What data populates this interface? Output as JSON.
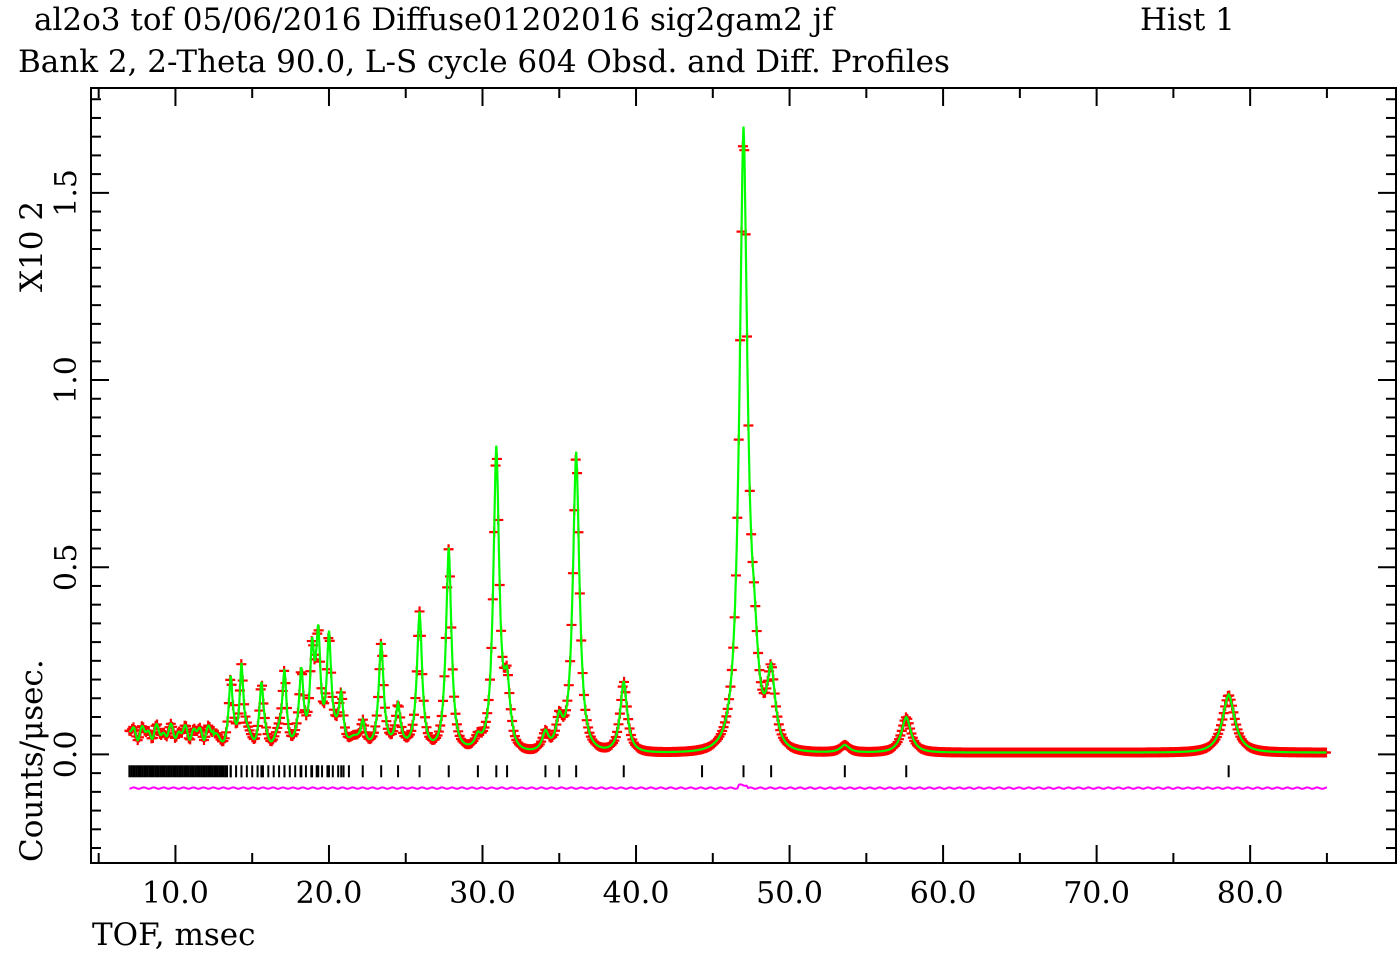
{
  "header": {
    "line1_left": "al2o3 tof 05/06/2016 Diffuse01202016 sig2gam2  jf",
    "line1_right": "Hist  1",
    "line2": "Bank  2, 2-Theta     90.0, L-S cycle  604 Obsd. and Diff. Profiles"
  },
  "colors": {
    "observed": "#ff0000",
    "calculated": "#00ff00",
    "difference": "#ff00ff",
    "reflection_ticks": "#000000",
    "frame": "#000000"
  },
  "chart_data": {
    "type": "line",
    "title": "Obsd. and Diff. Profiles",
    "xlabel": "TOF, msec",
    "ylabel": "Counts/μsec.",
    "y_scale_label": "X10 2",
    "xlim": [
      4.5,
      89.5
    ],
    "ylim": [
      -0.29,
      1.78
    ],
    "x_ticks": [
      "10.0",
      "20.0",
      "30.0",
      "40.0",
      "50.0",
      "60.0",
      "70.0",
      "80.0"
    ],
    "x_tick_values": [
      10,
      20,
      30,
      40,
      50,
      60,
      70,
      80
    ],
    "y_ticks": [
      "0.0",
      "0.5",
      "1.0",
      "1.5"
    ],
    "y_tick_values": [
      0,
      0.5,
      1.0,
      1.5
    ],
    "x_range": [
      7.0,
      85.0
    ],
    "baseline": 0.0,
    "peaks": [
      {
        "x": 13.6,
        "height": 0.15
      },
      {
        "x": 14.3,
        "height": 0.21
      },
      {
        "x": 15.6,
        "height": 0.14
      },
      {
        "x": 17.1,
        "height": 0.19
      },
      {
        "x": 18.2,
        "height": 0.18
      },
      {
        "x": 18.9,
        "height": 0.24
      },
      {
        "x": 19.3,
        "height": 0.26
      },
      {
        "x": 20.0,
        "height": 0.29
      },
      {
        "x": 20.8,
        "height": 0.13
      },
      {
        "x": 22.2,
        "height": 0.07
      },
      {
        "x": 23.4,
        "height": 0.28
      },
      {
        "x": 24.5,
        "height": 0.11
      },
      {
        "x": 25.9,
        "height": 0.36
      },
      {
        "x": 27.8,
        "height": 0.54
      },
      {
        "x": 29.7,
        "height": 0.03
      },
      {
        "x": 30.9,
        "height": 0.8
      },
      {
        "x": 31.6,
        "height": 0.16
      },
      {
        "x": 34.1,
        "height": 0.05
      },
      {
        "x": 35.0,
        "height": 0.08
      },
      {
        "x": 36.1,
        "height": 0.8
      },
      {
        "x": 39.2,
        "height": 0.19
      },
      {
        "x": 47.0,
        "height": 1.64
      },
      {
        "x": 47.7,
        "height": 0.18
      },
      {
        "x": 48.8,
        "height": 0.2
      },
      {
        "x": 53.6,
        "height": 0.02
      },
      {
        "x": 57.6,
        "height": 0.095
      },
      {
        "x": 78.6,
        "height": 0.155
      }
    ],
    "reflection_ticks_y": -0.045,
    "reflection_positions_sparse": [
      13.6,
      14.3,
      15.6,
      17.1,
      18.2,
      18.9,
      19.3,
      20.0,
      20.8,
      22.2,
      23.4,
      24.5,
      25.9,
      27.8,
      29.7,
      30.9,
      31.6,
      34.1,
      35.0,
      36.1,
      39.2,
      44.3,
      47.0,
      48.8,
      53.6,
      57.6,
      78.6
    ],
    "reflection_dense_range": [
      7.0,
      13.4
    ],
    "difference_offset": -0.09,
    "grid": false,
    "legend": "none"
  }
}
